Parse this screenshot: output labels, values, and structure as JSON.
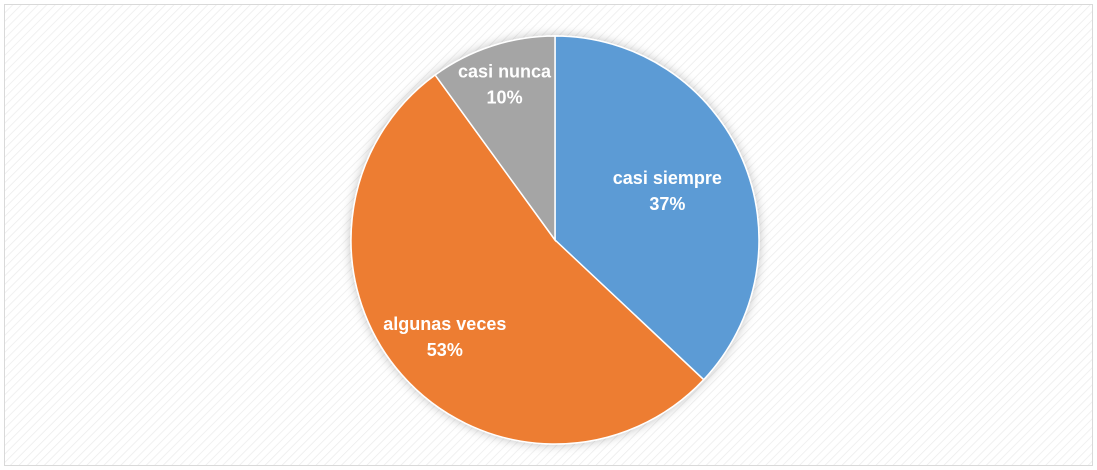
{
  "chart_data": {
    "type": "pie",
    "categories": [
      "casi siempre",
      "algunas veces",
      "casi nunca"
    ],
    "values": [
      37,
      53,
      10
    ],
    "value_labels": [
      "37%",
      "53%",
      "10%"
    ],
    "colors": [
      "#5b9bd5",
      "#ed7d31",
      "#a5a5a5"
    ]
  }
}
